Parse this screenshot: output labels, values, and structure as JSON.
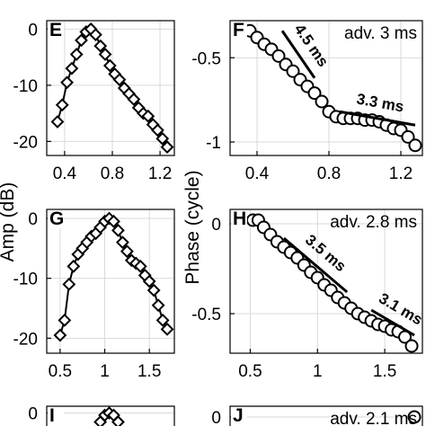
{
  "ylabels": {
    "amp": "Amp (dB)",
    "phase": "Phase (cycle)"
  },
  "chart_data": [
    {
      "panel": "E",
      "type": "line",
      "marker": "diamond",
      "xlim": [
        0.25,
        1.32
      ],
      "ylim": [
        -22.5,
        1.5
      ],
      "xticks": [
        "0.4",
        "0.8",
        "1.2"
      ],
      "xtickvals": [
        0.4,
        0.8,
        1.2
      ],
      "yticks": [
        "0",
        "-10",
        "-20"
      ],
      "ytickvals": [
        0,
        -10,
        -20
      ],
      "x": [
        0.34,
        0.38,
        0.42,
        0.46,
        0.5,
        0.54,
        0.58,
        0.62,
        0.66,
        0.7,
        0.74,
        0.78,
        0.82,
        0.86,
        0.9,
        0.94,
        0.98,
        1.02,
        1.06,
        1.1,
        1.14,
        1.18,
        1.22,
        1.26
      ],
      "y": [
        -16.5,
        -13.5,
        -9.5,
        -7.0,
        -4.5,
        -2.0,
        -0.5,
        0.0,
        -1.0,
        -3.0,
        -4.5,
        -6.5,
        -8.0,
        -9.0,
        -10.5,
        -11.5,
        -12.5,
        -14.0,
        -15.0,
        -15.5,
        -17.0,
        -18.0,
        -19.5,
        -21.0
      ]
    },
    {
      "panel": "F",
      "type": "line",
      "marker": "circle",
      "xlim": [
        0.25,
        1.32
      ],
      "ylim": [
        -1.08,
        -0.28
      ],
      "xticks": [
        "0.4",
        "0.8",
        "1.2"
      ],
      "xtickvals": [
        0.4,
        0.8,
        1.2
      ],
      "yticks": [
        "-0.5",
        "-1"
      ],
      "ytickvals": [
        -0.5,
        -1.0
      ],
      "x": [
        0.32,
        0.36,
        0.4,
        0.44,
        0.48,
        0.52,
        0.56,
        0.6,
        0.64,
        0.68,
        0.72,
        0.76,
        0.8,
        0.84,
        0.88,
        0.92,
        0.96,
        1.0,
        1.04,
        1.08,
        1.12,
        1.16,
        1.2,
        1.24,
        1.28
      ],
      "y": [
        -0.34,
        -0.34,
        -0.38,
        -0.42,
        -0.45,
        -0.49,
        -0.54,
        -0.58,
        -0.63,
        -0.67,
        -0.71,
        -0.76,
        -0.82,
        -0.85,
        -0.86,
        -0.86,
        -0.86,
        -0.87,
        -0.87,
        -0.88,
        -0.9,
        -0.92,
        -0.93,
        -0.97,
        -1.02
      ],
      "annotation": "adv. 3 ms",
      "slopes": [
        {
          "label": "4.5 ms",
          "from": [
            0.54,
            -0.34
          ],
          "to": [
            0.72,
            -0.62
          ]
        },
        {
          "label": "3.3 ms",
          "from": [
            0.86,
            -0.82
          ],
          "to": [
            1.28,
            -0.9
          ]
        }
      ]
    },
    {
      "panel": "G",
      "type": "line",
      "marker": "diamond",
      "xlim": [
        0.35,
        1.78
      ],
      "ylim": [
        -22.5,
        1.5
      ],
      "xticks": [
        "0.5",
        "1",
        "1.5"
      ],
      "xtickvals": [
        0.5,
        1.0,
        1.5
      ],
      "yticks": [
        "0",
        "-10",
        "-20"
      ],
      "ytickvals": [
        0,
        -10,
        -20
      ],
      "x": [
        0.5,
        0.55,
        0.6,
        0.65,
        0.7,
        0.75,
        0.8,
        0.85,
        0.9,
        0.95,
        1.0,
        1.05,
        1.1,
        1.15,
        1.2,
        1.25,
        1.3,
        1.35,
        1.4,
        1.45,
        1.5,
        1.55,
        1.6,
        1.65,
        1.7
      ],
      "y": [
        -19.5,
        -17.0,
        -11.0,
        -8.0,
        -6.0,
        -5.0,
        -4.0,
        -3.0,
        -2.5,
        -1.5,
        -0.5,
        0.0,
        -0.5,
        -2.0,
        -4.0,
        -5.5,
        -7.0,
        -7.5,
        -8.0,
        -9.5,
        -10.5,
        -12.0,
        -14.5,
        -17.0,
        -18.5
      ]
    },
    {
      "panel": "H",
      "type": "line",
      "marker": "circle",
      "xlim": [
        0.35,
        1.78
      ],
      "ylim": [
        -0.72,
        0.08
      ],
      "xticks": [
        "0.5",
        "1",
        "1.5"
      ],
      "xtickvals": [
        0.5,
        1.0,
        1.5
      ],
      "yticks": [
        "0",
        "-0.5"
      ],
      "ytickvals": [
        0,
        -0.5
      ],
      "x": [
        0.52,
        0.56,
        0.6,
        0.65,
        0.7,
        0.75,
        0.8,
        0.85,
        0.9,
        0.95,
        1.0,
        1.05,
        1.1,
        1.15,
        1.2,
        1.25,
        1.3,
        1.35,
        1.4,
        1.45,
        1.5,
        1.55,
        1.6,
        1.65,
        1.7
      ],
      "y": [
        0.02,
        0.02,
        -0.02,
        -0.06,
        -0.1,
        -0.13,
        -0.16,
        -0.19,
        -0.23,
        -0.27,
        -0.3,
        -0.34,
        -0.37,
        -0.41,
        -0.44,
        -0.47,
        -0.5,
        -0.52,
        -0.54,
        -0.56,
        -0.57,
        -0.59,
        -0.6,
        -0.63,
        -0.68
      ],
      "annotation": "adv. 2.8 ms",
      "slopes": [
        {
          "label": "3.5 ms",
          "from": [
            0.75,
            -0.08
          ],
          "to": [
            1.22,
            -0.38
          ]
        },
        {
          "label": "3.1 ms",
          "from": [
            1.4,
            -0.48
          ],
          "to": [
            1.72,
            -0.62
          ]
        }
      ]
    },
    {
      "panel": "I",
      "type": "line",
      "marker": "diamond",
      "xlim": [
        0.35,
        1.78
      ],
      "ylim": [
        -22.5,
        1.5
      ],
      "yticks": [
        "0"
      ],
      "ytickvals": [
        0
      ],
      "x": [
        0.95,
        1.0,
        1.05,
        1.1,
        1.15
      ],
      "y": [
        -2.0,
        -0.5,
        0.0,
        -0.5,
        -2.0
      ]
    },
    {
      "panel": "J",
      "type": "line",
      "marker": "circle",
      "xlim": [
        0.35,
        1.78
      ],
      "ylim": [
        -0.72,
        0.08
      ],
      "yticks": [
        "0"
      ],
      "ytickvals": [
        0
      ],
      "x": [
        1.72
      ],
      "y": [
        0.0
      ],
      "annotation": "adv. 2.1 ms"
    }
  ]
}
